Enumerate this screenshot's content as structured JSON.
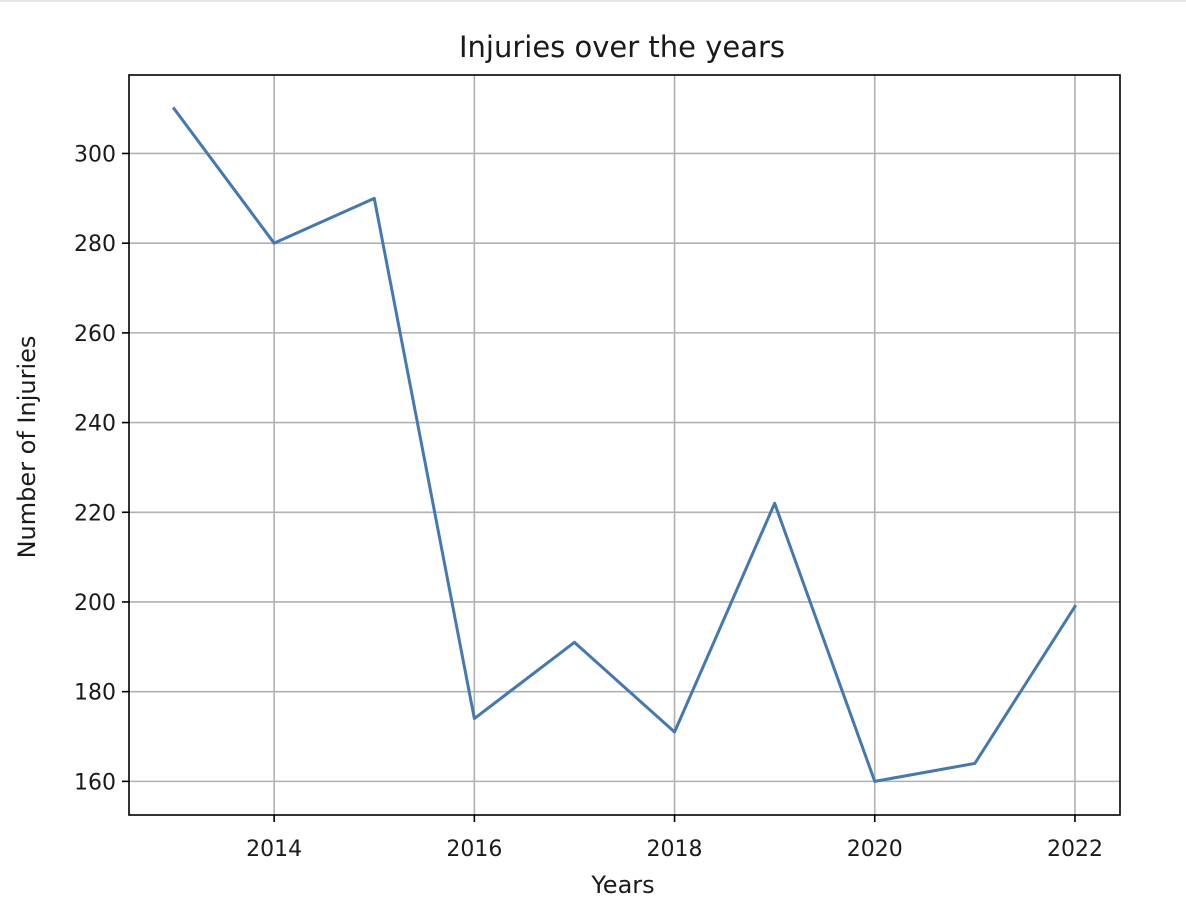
{
  "chart_data": {
    "type": "line",
    "title": "Injuries over the years",
    "xlabel": "Years",
    "ylabel": "Number of Injuries",
    "x": [
      2013,
      2014,
      2015,
      2016,
      2017,
      2018,
      2019,
      2020,
      2021,
      2022
    ],
    "series": [
      {
        "values": [
          310,
          280,
          290,
          174,
          191,
          171,
          222,
          160,
          164,
          199
        ],
        "color": "#4479b0"
      }
    ],
    "xlim": [
      2012.55,
      2022.45
    ],
    "ylim": [
      152.5,
      317.5
    ],
    "xticks": [
      2014,
      2016,
      2018,
      2020,
      2022
    ],
    "yticks": [
      160,
      180,
      200,
      220,
      240,
      260,
      280,
      300
    ],
    "grid": true
  }
}
